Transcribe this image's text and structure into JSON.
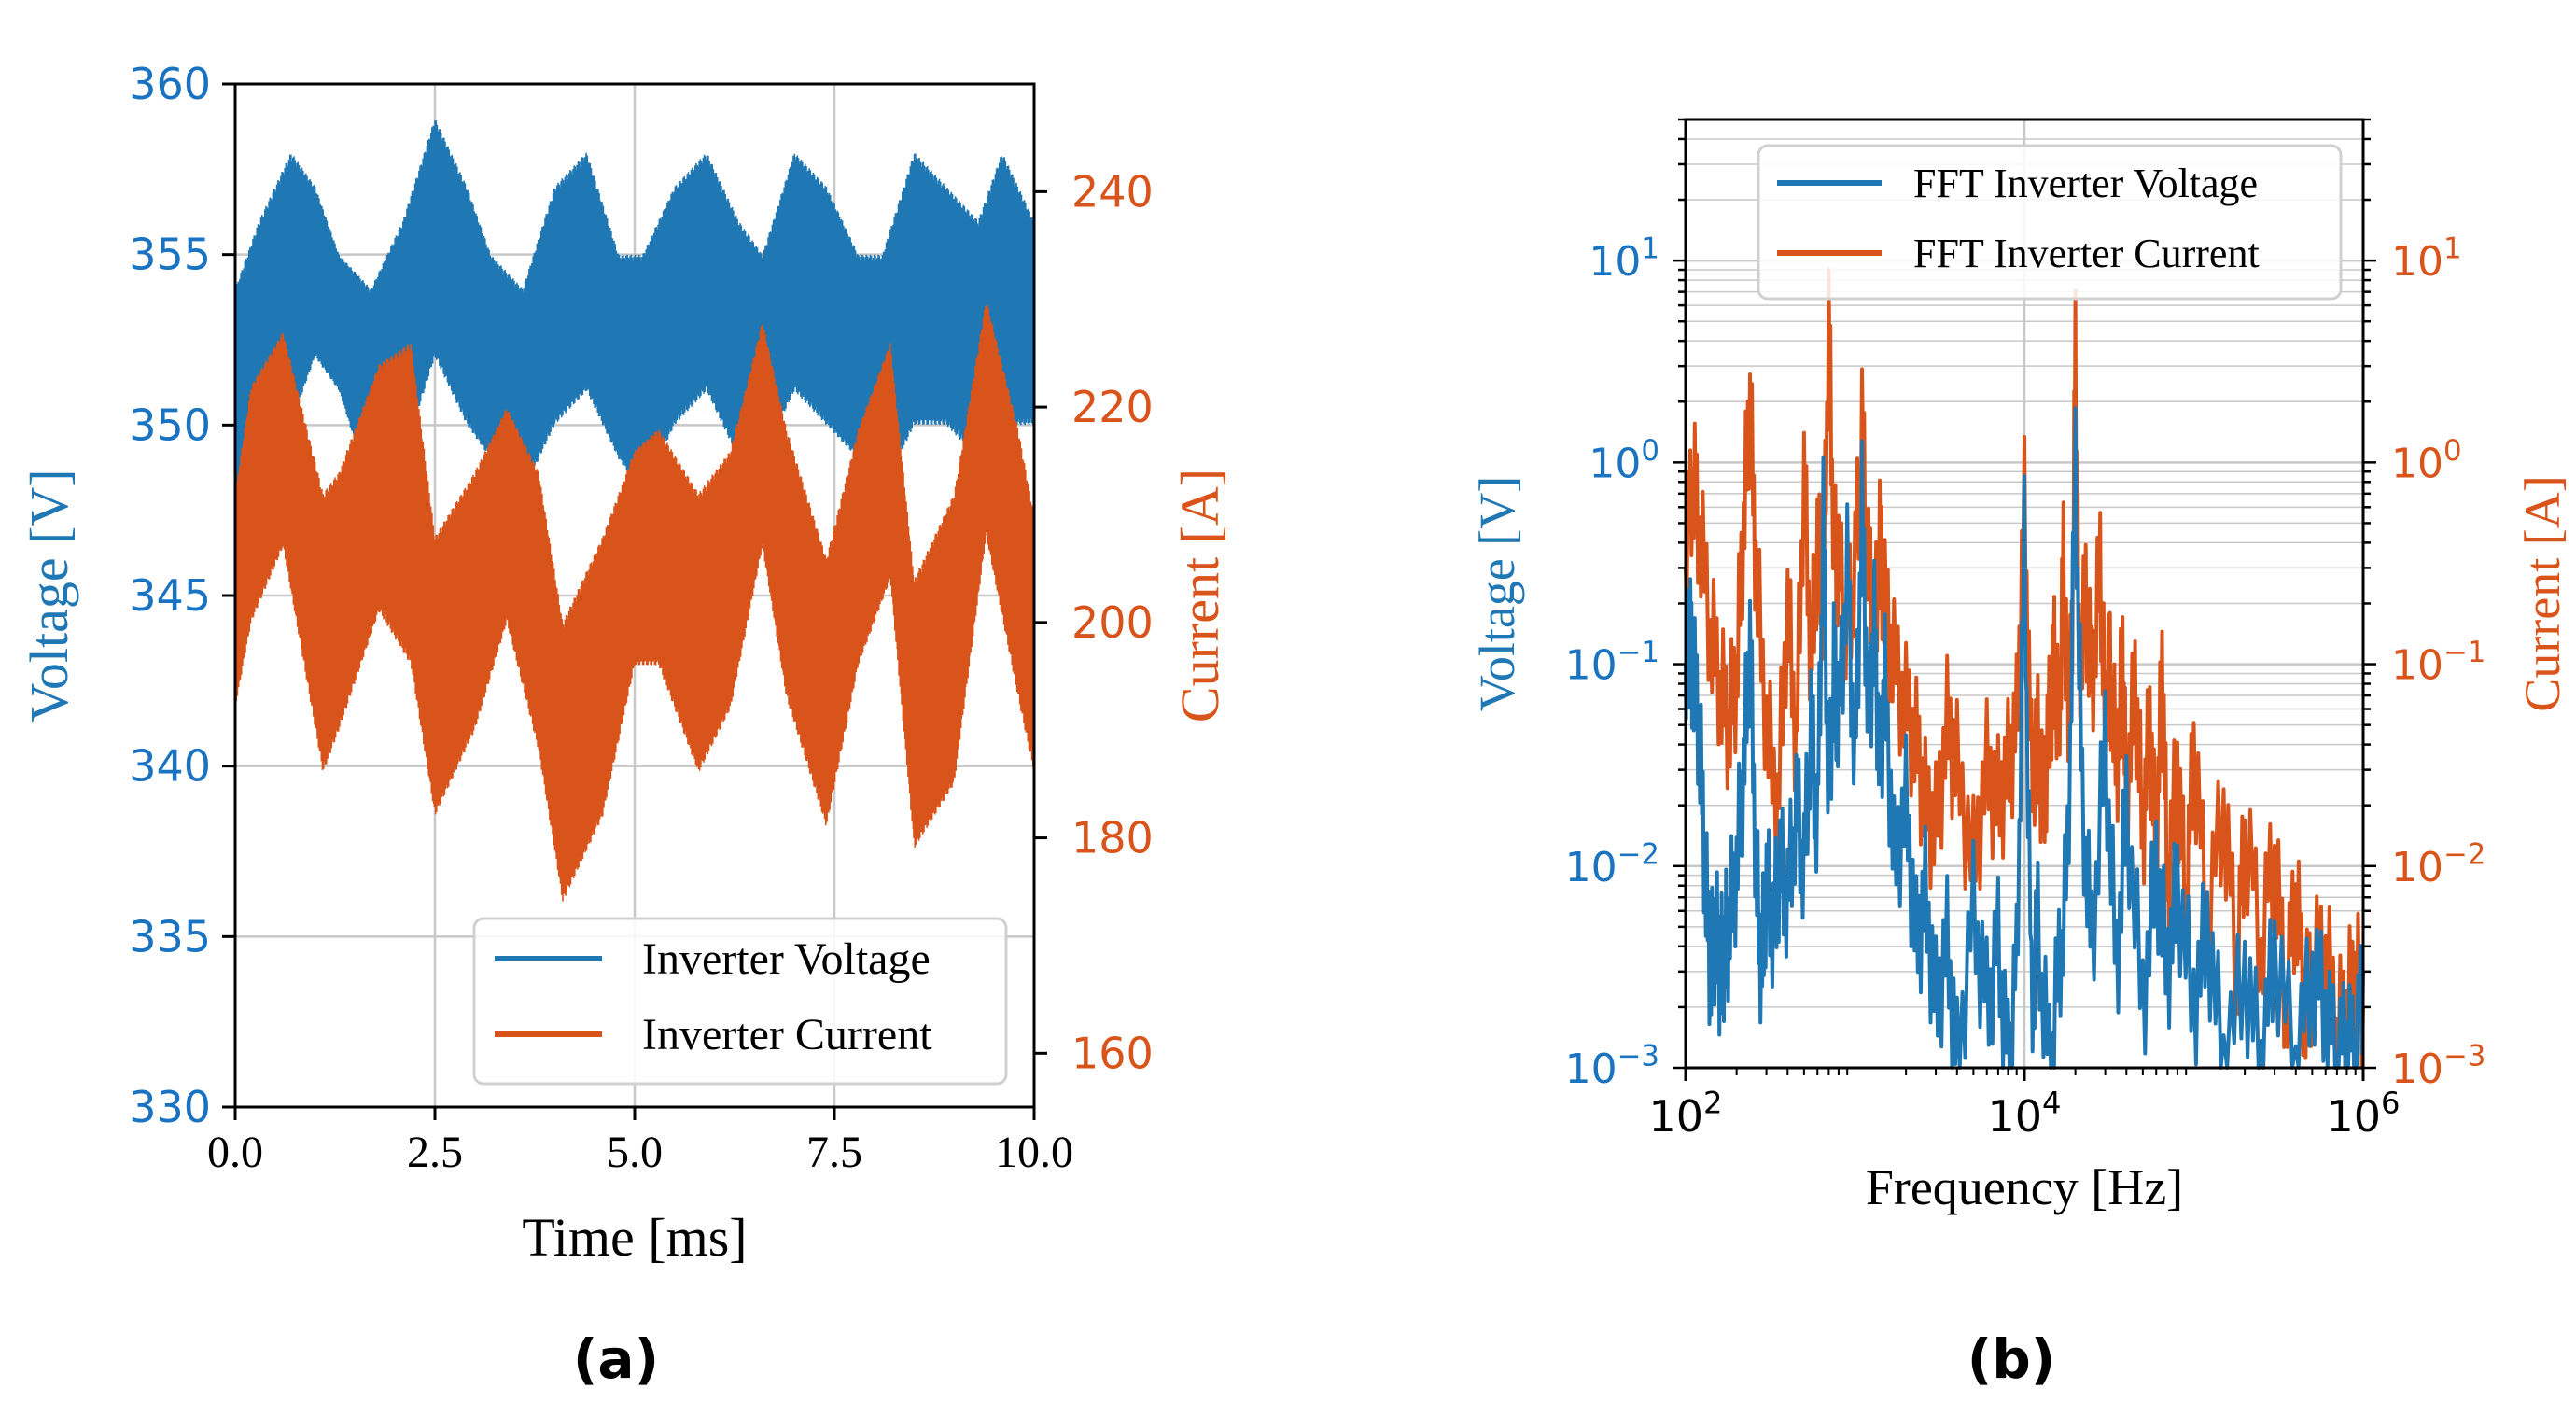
{
  "colors": {
    "voltage": "#1f77b4",
    "current": "#d9541a",
    "voltage_tick": "#1a73c0",
    "current_tick": "#d9541a",
    "grid": "#c8c8c8"
  },
  "panel_labels": {
    "a": "(a)",
    "b": "(b)"
  },
  "chart_data": [
    {
      "type": "line",
      "id": "a",
      "title": "",
      "xlabel": "Time [ms]",
      "ylabel_left": "Voltage [V]",
      "ylabel_right": "Current [A]",
      "xlim": [
        0,
        10
      ],
      "ylim_left": [
        330,
        360
      ],
      "ylim_right": [
        155,
        250
      ],
      "x_ticks": [
        0,
        2.5,
        5,
        7.5,
        10
      ],
      "x_tick_labels": [
        "0.0",
        "2.5",
        "5.0",
        "7.5",
        "10.0"
      ],
      "y_ticks_left": [
        330,
        335,
        340,
        345,
        350,
        355,
        360
      ],
      "y_tick_labels_left": [
        "330",
        "335",
        "340",
        "345",
        "350",
        "355",
        "360"
      ],
      "y_ticks_right": [
        160,
        180,
        200,
        220,
        240
      ],
      "y_tick_labels_right": [
        "160",
        "180",
        "200",
        "220",
        "240"
      ],
      "grid": true,
      "legend_position": "lower-right",
      "series": [
        {
          "name": "Inverter Voltage",
          "axis": "left",
          "x": [
            0,
            0.3,
            0.7,
            1.0,
            1.3,
            1.7,
            2.1,
            2.5,
            2.9,
            3.2,
            3.6,
            4.0,
            4.4,
            4.8,
            5.1,
            5.5,
            5.9,
            6.3,
            6.6,
            7.0,
            7.4,
            7.8,
            8.1,
            8.5,
            8.9,
            9.3,
            9.6,
            10
          ],
          "low": [
            348,
            348,
            350,
            352,
            351,
            348,
            349,
            352,
            350,
            349,
            348,
            350,
            351,
            349,
            348,
            350,
            351,
            349,
            349,
            351,
            350,
            349,
            348,
            350,
            350,
            349,
            350,
            350
          ],
          "high": [
            354,
            356,
            358,
            357,
            355,
            354,
            356,
            359,
            357,
            355,
            354,
            357,
            358,
            355,
            355,
            357,
            358,
            356,
            355,
            358,
            357,
            355,
            355,
            358,
            357,
            356,
            358,
            356
          ]
        },
        {
          "name": "Inverter Current",
          "axis": "right",
          "x": [
            0,
            0.2,
            0.6,
            1.1,
            1.3,
            1.8,
            2.2,
            2.5,
            3.0,
            3.4,
            3.8,
            4.1,
            4.6,
            5.0,
            5.3,
            5.8,
            6.2,
            6.6,
            6.9,
            7.4,
            7.8,
            8.2,
            8.5,
            9.0,
            9.4,
            9.8,
            10
          ],
          "low": [
            192,
            200,
            207,
            186,
            190,
            201,
            196,
            182,
            190,
            200,
            188,
            174,
            182,
            196,
            196,
            186,
            192,
            207,
            193,
            181,
            196,
            204,
            179,
            185,
            208,
            193,
            186
          ],
          "high": [
            212,
            222,
            227,
            212,
            214,
            224,
            226,
            208,
            214,
            220,
            214,
            200,
            208,
            216,
            218,
            212,
            216,
            228,
            218,
            206,
            218,
            226,
            204,
            212,
            230,
            218,
            210
          ]
        }
      ]
    },
    {
      "type": "line",
      "id": "b",
      "title": "",
      "xlabel": "Frequency [Hz]",
      "ylabel_left": "Voltage [V]",
      "ylabel_right": "Current [A]",
      "x_scale": "log",
      "y_scale": "log",
      "xlim": [
        100,
        1000000
      ],
      "ylim_left": [
        0.001,
        50
      ],
      "ylim_right": [
        0.001,
        50
      ],
      "x_ticks": [
        100,
        10000,
        1000000
      ],
      "x_tick_labels": [
        [
          "10",
          "2"
        ],
        [
          "10",
          "4"
        ],
        [
          "10",
          "6"
        ]
      ],
      "y_ticks_left": [
        0.001,
        0.01,
        0.1,
        1,
        10
      ],
      "y_tick_labels_left": [
        [
          "10",
          "−3"
        ],
        [
          "10",
          "−2"
        ],
        [
          "10",
          "−1"
        ],
        [
          "10",
          "0"
        ],
        [
          "10",
          "1"
        ]
      ],
      "y_tick_labels_right": [
        [
          "10",
          "−3"
        ],
        [
          "10",
          "−2"
        ],
        [
          "10",
          "−1"
        ],
        [
          "10",
          "0"
        ],
        [
          "10",
          "1"
        ]
      ],
      "grid": true,
      "legend_position": "top-right",
      "series": [
        {
          "name": "FFT Inverter Current",
          "axis": "right",
          "x": [
            100,
            110,
            120,
            140,
            160,
            180,
            200,
            220,
            240,
            260,
            300,
            350,
            400,
            450,
            500,
            550,
            600,
            650,
            700,
            750,
            800,
            900,
            1000,
            1100,
            1200,
            1300,
            1400,
            1500,
            1700,
            2000,
            2300,
            2600,
            3000,
            3500,
            4000,
            5000,
            6000,
            7000,
            8000,
            9000,
            10000,
            11000,
            12000,
            13000,
            14000,
            15000,
            16000,
            17000,
            18000,
            19000,
            20000,
            21000,
            23000,
            25000,
            28000,
            30000,
            32000,
            35000,
            38000,
            40000,
            45000,
            50000,
            55000,
            60000,
            65000,
            70000,
            80000,
            90000,
            100000,
            120000,
            150000,
            180000,
            200000,
            250000,
            300000,
            350000,
            400000,
            450000,
            500000,
            600000,
            700000,
            800000,
            900000,
            1000000
          ],
          "y": [
            0.3,
            0.9,
            0.5,
            0.15,
            0.08,
            0.05,
            0.09,
            0.5,
            2.1,
            0.3,
            0.05,
            0.02,
            0.2,
            0.04,
            0.9,
            0.1,
            0.4,
            0.2,
            5.2,
            0.4,
            0.3,
            0.15,
            0.3,
            1.5,
            0.3,
            0.15,
            0.4,
            0.2,
            0.1,
            0.06,
            0.04,
            0.02,
            0.015,
            0.05,
            0.03,
            0.01,
            0.03,
            0.02,
            0.03,
            0.05,
            0.6,
            0.03,
            0.04,
            0.02,
            0.05,
            0.1,
            0.05,
            0.3,
            0.06,
            0.1,
            3.5,
            0.1,
            0.2,
            0.08,
            0.3,
            0.05,
            0.1,
            0.03,
            0.1,
            0.02,
            0.08,
            0.015,
            0.05,
            0.01,
            0.1,
            0.008,
            0.03,
            0.006,
            0.04,
            0.005,
            0.02,
            0.003,
            0.015,
            0.004,
            0.012,
            0.002,
            0.008,
            0.002,
            0.003,
            0.004,
            0.0015,
            0.002,
            0.003,
            0.002
          ]
        },
        {
          "name": "FFT Inverter Voltage",
          "axis": "left",
          "x": [
            100,
            105,
            110,
            120,
            130,
            140,
            150,
            160,
            170,
            180,
            200,
            220,
            240,
            260,
            280,
            300,
            330,
            360,
            400,
            450,
            500,
            550,
            600,
            650,
            700,
            750,
            800,
            900,
            1000,
            1100,
            1200,
            1300,
            1400,
            1500,
            1700,
            2000,
            2300,
            2600,
            3000,
            3500,
            4000,
            5000,
            6000,
            7000,
            8000,
            9000,
            10000,
            11000,
            12000,
            14000,
            16000,
            18000,
            20000,
            22000,
            25000,
            30000,
            35000,
            40000,
            50000,
            60000,
            70000,
            80000,
            100000,
            120000,
            150000,
            200000,
            250000,
            300000,
            400000,
            500000,
            600000,
            700000,
            800000,
            900000,
            1000000
          ],
          "y": [
            0.1,
            0.14,
            0.1,
            0.05,
            0.01,
            0.003,
            0.005,
            0.003,
            0.004,
            0.005,
            0.01,
            0.03,
            0.14,
            0.01,
            0.003,
            0.008,
            0.005,
            0.01,
            0.007,
            0.02,
            0.01,
            0.05,
            0.015,
            0.55,
            0.02,
            0.1,
            0.05,
            0.3,
            0.03,
            0.6,
            0.05,
            0.15,
            0.03,
            0.08,
            0.01,
            0.02,
            0.004,
            0.007,
            0.002,
            0.004,
            0.001,
            0.006,
            0.002,
            0.004,
            0.001,
            0.003,
            0.4,
            0.002,
            0.005,
            0.001,
            0.003,
            0.01,
            0.95,
            0.02,
            0.004,
            0.04,
            0.003,
            0.02,
            0.002,
            0.01,
            0.003,
            0.008,
            0.002,
            0.005,
            0.001,
            0.003,
            0.001,
            0.004,
            0.001,
            0.003,
            0.002,
            0.001,
            0.0015,
            0.001,
            0.003
          ]
        }
      ]
    }
  ]
}
